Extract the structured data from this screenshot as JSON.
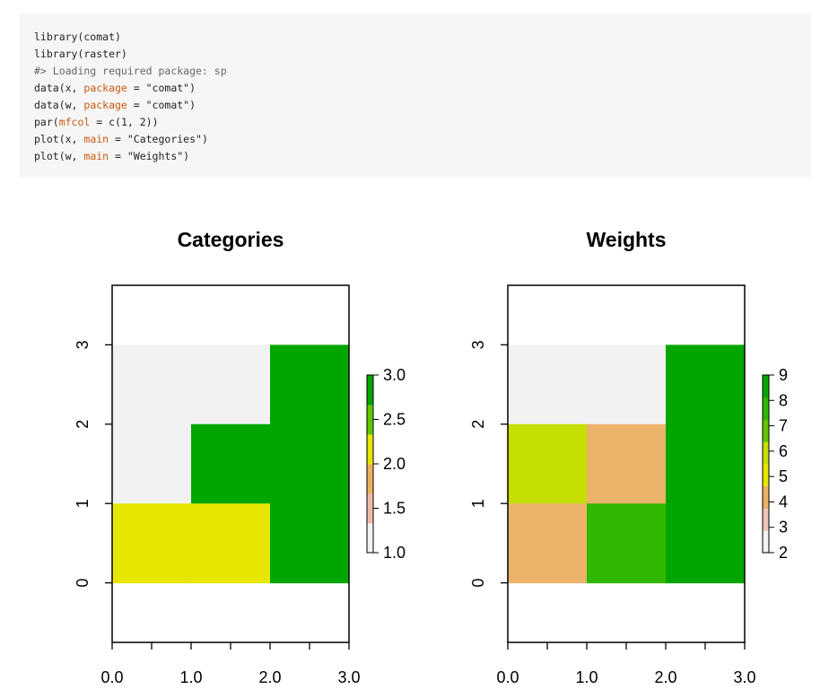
{
  "code": {
    "lines": [
      [
        {
          "t": "library(comat)"
        }
      ],
      [
        {
          "t": "library(raster)"
        }
      ],
      [
        {
          "t": "#> Loading required package: sp",
          "k": "comment"
        }
      ],
      [
        {
          "t": "data(x, "
        },
        {
          "t": "package",
          "k": "arg"
        },
        {
          "t": " = \"comat\")"
        }
      ],
      [
        {
          "t": "data(w, "
        },
        {
          "t": "package",
          "k": "arg"
        },
        {
          "t": " = \"comat\")"
        }
      ],
      [
        {
          "t": "par("
        },
        {
          "t": "mfcol",
          "k": "arg"
        },
        {
          "t": " = c(1, 2))"
        }
      ],
      [
        {
          "t": "plot(x, "
        },
        {
          "t": "main",
          "k": "arg"
        },
        {
          "t": " = \"Categories\")"
        }
      ],
      [
        {
          "t": "plot(w, "
        },
        {
          "t": "main",
          "k": "arg"
        },
        {
          "t": " = \"Weights\")"
        }
      ]
    ]
  },
  "chart_data": [
    {
      "type": "heatmap",
      "title": "Categories",
      "xlim": [
        0,
        3
      ],
      "ylim": [
        -0.75,
        3.75
      ],
      "x_ticks": [
        0,
        0.5,
        1,
        1.5,
        2,
        2.5,
        3
      ],
      "x_tick_labels": [
        "0.0",
        "1.0",
        "2.0",
        "3.0"
      ],
      "x_labeled_ticks": [
        0,
        1,
        2,
        3
      ],
      "y_ticks": [
        0,
        1,
        2,
        3
      ],
      "y_tick_labels": [
        "0",
        "1",
        "2",
        "3"
      ],
      "extent": {
        "x": [
          0,
          3
        ],
        "y": [
          0,
          3
        ]
      },
      "grid": [
        [
          1,
          1,
          3
        ],
        [
          1,
          3,
          3
        ],
        [
          2,
          2,
          3
        ]
      ],
      "cell_colors": [
        [
          "#f2f2f2",
          "#f2f2f2",
          "#00a600"
        ],
        [
          "#f2f2f2",
          "#00a600",
          "#00a600"
        ],
        [
          "#e6e600",
          "#e6e600",
          "#00a600"
        ]
      ],
      "legend": {
        "min": 1,
        "max": 3,
        "ticks": [
          1.0,
          1.5,
          2.0,
          2.5,
          3.0
        ],
        "tick_labels": [
          "1.0",
          "1.5",
          "2.0",
          "2.5",
          "3.0"
        ],
        "colors": [
          "#f2f2f2",
          "#eebba9",
          "#ebb25e",
          "#e6e600",
          "#63c600",
          "#00a600"
        ]
      }
    },
    {
      "type": "heatmap",
      "title": "Weights",
      "xlim": [
        0,
        3
      ],
      "ylim": [
        -0.75,
        3.75
      ],
      "x_ticks": [
        0,
        0.5,
        1,
        1.5,
        2,
        2.5,
        3
      ],
      "x_tick_labels": [
        "0.0",
        "1.0",
        "2.0",
        "3.0"
      ],
      "x_labeled_ticks": [
        0,
        1,
        2,
        3
      ],
      "y_ticks": [
        0,
        1,
        2,
        3
      ],
      "y_tick_labels": [
        "0",
        "1",
        "2",
        "3"
      ],
      "extent": {
        "x": [
          0,
          3
        ],
        "y": [
          0,
          3
        ]
      },
      "grid": [
        [
          2,
          2,
          9
        ],
        [
          6,
          4,
          9
        ],
        [
          4,
          8,
          9
        ]
      ],
      "cell_colors": [
        [
          "#f2f2f2",
          "#f2f2f2",
          "#00a600"
        ],
        [
          "#c5df00",
          "#ebb26a",
          "#00a600"
        ],
        [
          "#ebb26a",
          "#30b800",
          "#00a600"
        ]
      ],
      "legend": {
        "min": 2,
        "max": 9,
        "ticks": [
          2,
          3,
          4,
          5,
          6,
          7,
          8,
          9
        ],
        "tick_labels": [
          "2",
          "3",
          "4",
          "5",
          "6",
          "7",
          "8",
          "9"
        ],
        "colors": [
          "#f2f2f2",
          "#eec4b9",
          "#ebb26a",
          "#e6e600",
          "#c5df00",
          "#63c600",
          "#30b800",
          "#00a600"
        ]
      }
    }
  ]
}
